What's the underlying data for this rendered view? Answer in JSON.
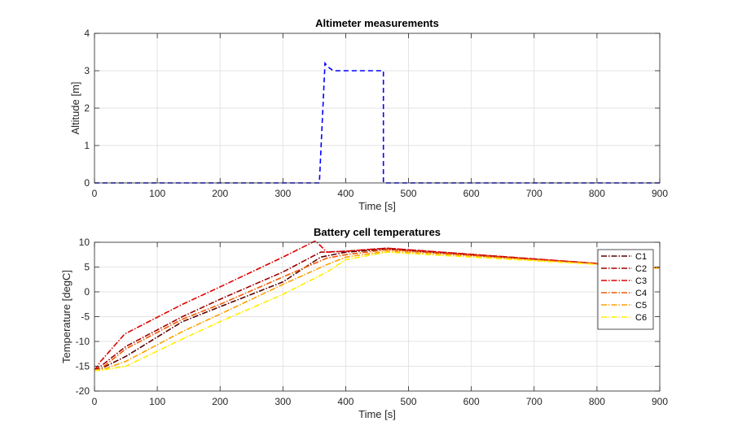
{
  "chart_data": [
    {
      "type": "line",
      "title": "Altimeter measurements",
      "xlabel": "Time [s]",
      "ylabel": "Altitude [m]",
      "xlim": [
        0,
        900
      ],
      "ylim": [
        0,
        4
      ],
      "xticks": [
        0,
        100,
        200,
        300,
        400,
        500,
        600,
        700,
        800,
        900
      ],
      "yticks": [
        0,
        1,
        2,
        3,
        4
      ],
      "grid": true,
      "series": [
        {
          "color": "#0000ff",
          "line_style": "dashed",
          "x": [
            0,
            358,
            367,
            372,
            380,
            460,
            460,
            900
          ],
          "y": [
            0,
            0,
            3.2,
            3.1,
            3.0,
            3.0,
            0,
            0
          ]
        }
      ]
    },
    {
      "type": "line",
      "title": "Battery cell temperatures",
      "xlabel": "Time [s]",
      "ylabel": "Temperature [degC]",
      "xlim": [
        0,
        900
      ],
      "ylim": [
        -20,
        10
      ],
      "xticks": [
        0,
        100,
        200,
        300,
        400,
        500,
        600,
        700,
        800,
        900
      ],
      "yticks": [
        -20,
        -15,
        -10,
        -5,
        0,
        5,
        10
      ],
      "grid": true,
      "legend_position": "top-right",
      "series": [
        {
          "name": "C1",
          "color": "#5a0000",
          "line_style": "dash-dot",
          "x": [
            0,
            10,
            50,
            140,
            200,
            300,
            360,
            400,
            465,
            900
          ],
          "y": [
            -15.8,
            -15.5,
            -13,
            -6,
            -3,
            2,
            7,
            8,
            8.6,
            4.8
          ]
        },
        {
          "name": "C2",
          "color": "#a00000",
          "line_style": "dash-dot",
          "x": [
            0,
            10,
            50,
            140,
            200,
            300,
            360,
            400,
            465,
            900
          ],
          "y": [
            -15.8,
            -15,
            -11,
            -5,
            -1.5,
            4,
            8,
            8.2,
            8.8,
            4.8
          ]
        },
        {
          "name": "C3",
          "color": "#e00000",
          "line_style": "dash-dot",
          "x": [
            0,
            10,
            48,
            140,
            200,
            300,
            352,
            370,
            400,
            465,
            900
          ],
          "y": [
            -15.8,
            -14,
            -8.5,
            -2.5,
            1,
            7,
            10.3,
            8,
            8.2,
            8.8,
            4.8
          ]
        },
        {
          "name": "C4",
          "color": "#f05a00",
          "line_style": "dash-dot",
          "x": [
            0,
            10,
            50,
            140,
            200,
            300,
            370,
            400,
            465,
            900
          ],
          "y": [
            -15.8,
            -15.5,
            -11.5,
            -5.5,
            -2.5,
            3,
            6.8,
            7.5,
            8.5,
            4.8
          ]
        },
        {
          "name": "C5",
          "color": "#ffa000",
          "line_style": "dash-dot",
          "x": [
            0,
            10,
            50,
            140,
            200,
            300,
            370,
            400,
            465,
            900
          ],
          "y": [
            -15.8,
            -15.8,
            -14,
            -8,
            -4.5,
            1.5,
            5.5,
            7,
            8.2,
            4.8
          ]
        },
        {
          "name": "C6",
          "color": "#ffee00",
          "line_style": "dash-dot",
          "x": [
            0,
            10,
            50,
            140,
            200,
            300,
            370,
            400,
            465,
            900
          ],
          "y": [
            -15.8,
            -15.8,
            -15,
            -9.5,
            -6,
            -0.5,
            4,
            6.5,
            8,
            4.8
          ]
        }
      ]
    }
  ]
}
